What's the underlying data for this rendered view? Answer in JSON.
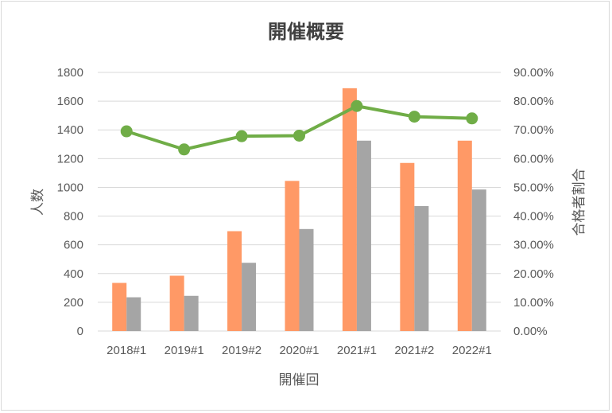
{
  "chart_data": {
    "type": "bar",
    "title": "開催概要",
    "xlabel": "開催回",
    "ylabel": "人数",
    "y2label": "合格者割合",
    "categories": [
      "2018#1",
      "2019#1",
      "2019#2",
      "2020#1",
      "2021#1",
      "2021#2",
      "2022#1"
    ],
    "ylim": [
      0,
      1800
    ],
    "yticks": [
      "0",
      "200",
      "400",
      "600",
      "800",
      "1000",
      "1200",
      "1400",
      "1600",
      "1800"
    ],
    "y2lim": [
      0,
      0.9
    ],
    "y2ticks": [
      "0.00%",
      "10.00%",
      "20.00%",
      "30.00%",
      "40.00%",
      "50.00%",
      "60.00%",
      "70.00%",
      "80.00%",
      "90.00%"
    ],
    "grid": true,
    "legend": "none",
    "series": [
      {
        "type": "bar",
        "axis": "left",
        "color": "#ff9966",
        "values": [
          335,
          385,
          695,
          1045,
          1690,
          1170,
          1325
        ]
      },
      {
        "type": "bar",
        "axis": "left",
        "color": "#a5a5a5",
        "values": [
          235,
          245,
          475,
          710,
          1325,
          870,
          985
        ]
      },
      {
        "type": "line",
        "axis": "right",
        "color": "#70ad47",
        "values": [
          0.695,
          0.632,
          0.678,
          0.68,
          0.783,
          0.746,
          0.74
        ]
      }
    ]
  }
}
